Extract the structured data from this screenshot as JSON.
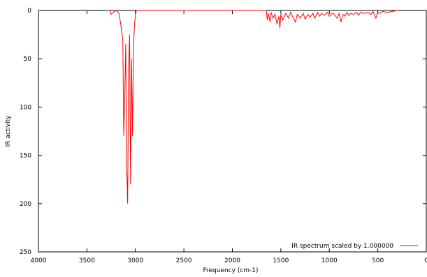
{
  "chart_data": {
    "type": "line",
    "xlabel": "Frequency (cm-1)",
    "ylabel": "IR activity",
    "x": [
      3260,
      3250,
      3230,
      3200,
      3170,
      3150,
      3130,
      3120,
      3110,
      3100,
      3090,
      3080,
      3070,
      3060,
      3050,
      3040,
      3030,
      3020,
      3010,
      3000,
      2990,
      2950,
      1650,
      1640,
      1630,
      1610,
      1600,
      1580,
      1560,
      1540,
      1520,
      1510,
      1500,
      1480,
      1450,
      1420,
      1400,
      1380,
      1350,
      1330,
      1300,
      1270,
      1250,
      1220,
      1200,
      1170,
      1150,
      1120,
      1100,
      1080,
      1050,
      1020,
      1000,
      970,
      950,
      920,
      900,
      880,
      860,
      840,
      820,
      800,
      780,
      750,
      720,
      700,
      680,
      650,
      600,
      570,
      550,
      520,
      500,
      480,
      450,
      400,
      350,
      300,
      280
    ],
    "series": [
      {
        "name": "IR spectrum scaled by 1.000000",
        "color": "#ff0000",
        "values": [
          0,
          4,
          2,
          0,
          3,
          15,
          30,
          130,
          90,
          35,
          160,
          200,
          60,
          25,
          180,
          50,
          130,
          40,
          15,
          5,
          0,
          0,
          0,
          10,
          3,
          12,
          2,
          8,
          4,
          14,
          6,
          18,
          4,
          10,
          3,
          8,
          2,
          6,
          12,
          4,
          8,
          3,
          9,
          4,
          7,
          3,
          8,
          2,
          6,
          3,
          5,
          2,
          6,
          3,
          4,
          8,
          3,
          12,
          4,
          6,
          2,
          5,
          3,
          4,
          2,
          5,
          2,
          3,
          2,
          4,
          1,
          8,
          2,
          3,
          1,
          2,
          1,
          0,
          0
        ]
      }
    ],
    "xlim": [
      4000,
      0
    ],
    "xticks": [
      4000,
      3500,
      3000,
      2500,
      2000,
      1500,
      1000,
      500,
      0
    ],
    "ylim": [
      250,
      0
    ],
    "yticks": [
      0,
      50,
      100,
      150,
      200,
      250
    ],
    "legend": "lower right"
  }
}
